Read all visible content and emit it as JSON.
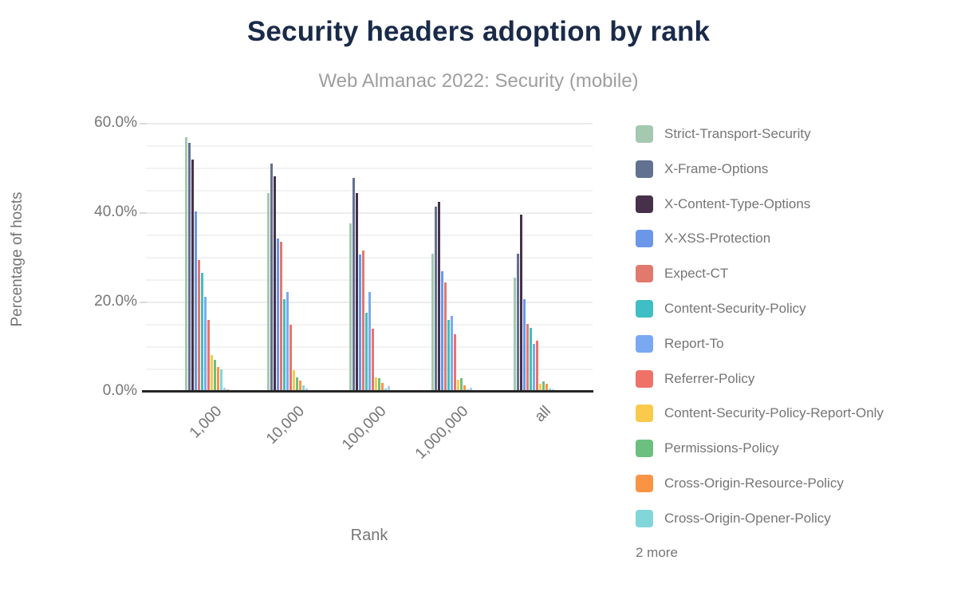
{
  "title_color": "#1a2b49",
  "axis_text_color": "#757575",
  "chart_data": {
    "type": "bar",
    "title": "Security headers adoption by rank",
    "subtitle": "Web Almanac 2022: Security (mobile)",
    "xlabel": "Rank",
    "ylabel": "Percentage of hosts",
    "ylim": [
      0,
      60
    ],
    "grid": {
      "minor_step": 5,
      "major_step": 20,
      "visible": true
    },
    "yticks": [
      {
        "value": 0,
        "label": "0.0%"
      },
      {
        "value": 20,
        "label": "20.0%"
      },
      {
        "value": 40,
        "label": "40.0%"
      },
      {
        "value": 60,
        "label": "60.0%"
      }
    ],
    "categories": [
      "1,000",
      "10,000",
      "100,000",
      "1,000,000",
      "all"
    ],
    "legend_position": "right",
    "legend_more": "2 more",
    "series": [
      {
        "name": "Strict-Transport-Security",
        "color": "#a5c8b1",
        "in_legend": true,
        "values": [
          56.7,
          44.2,
          37.5,
          30.7,
          25.4
        ]
      },
      {
        "name": "X-Frame-Options",
        "color": "#61718f",
        "in_legend": true,
        "values": [
          55.5,
          50.9,
          47.7,
          41.3,
          30.7
        ]
      },
      {
        "name": "X-Content-Type-Options",
        "color": "#46304a",
        "in_legend": true,
        "values": [
          51.7,
          48.0,
          44.3,
          42.3,
          39.5
        ]
      },
      {
        "name": "X-XSS-Protection",
        "color": "#6a97e8",
        "in_legend": true,
        "values": [
          40.2,
          34.1,
          30.6,
          26.8,
          20.6
        ]
      },
      {
        "name": "Expect-CT",
        "color": "#e2796e",
        "in_legend": true,
        "values": [
          29.2,
          33.4,
          31.4,
          24.2,
          15.0
        ]
      },
      {
        "name": "Content-Security-Policy",
        "color": "#3fbec3",
        "in_legend": true,
        "values": [
          26.4,
          20.5,
          17.5,
          15.9,
          14.1
        ]
      },
      {
        "name": "Report-To",
        "color": "#7aa9f2",
        "in_legend": true,
        "values": [
          21.0,
          22.1,
          22.2,
          16.7,
          10.5
        ]
      },
      {
        "name": "Referrer-Policy",
        "color": "#ef7268",
        "in_legend": true,
        "values": [
          15.9,
          14.9,
          14.0,
          12.7,
          11.2
        ]
      },
      {
        "name": "Content-Security-Policy-Report-Only",
        "color": "#f9ca4b",
        "in_legend": true,
        "values": [
          8.0,
          4.6,
          3.0,
          2.5,
          1.6
        ]
      },
      {
        "name": "Permissions-Policy",
        "color": "#6dbf80",
        "in_legend": true,
        "values": [
          7.0,
          3.1,
          2.8,
          2.9,
          2.1
        ]
      },
      {
        "name": "Cross-Origin-Resource-Policy",
        "color": "#fa9445",
        "in_legend": true,
        "values": [
          5.3,
          2.4,
          1.8,
          1.3,
          1.6
        ]
      },
      {
        "name": "Cross-Origin-Opener-Policy",
        "color": "#81d6d9",
        "in_legend": true,
        "values": [
          4.9,
          1.2,
          0.5,
          0.3,
          0.5
        ]
      },
      {
        "name": "",
        "color": "#aac9f7",
        "in_legend": false,
        "values": [
          0.8,
          0.6,
          1.0,
          0.7,
          0.4
        ]
      },
      {
        "name": "",
        "color": "#f2928c",
        "in_legend": false,
        "values": [
          0.3,
          0.2,
          0.2,
          0.2,
          0.2
        ]
      }
    ]
  }
}
